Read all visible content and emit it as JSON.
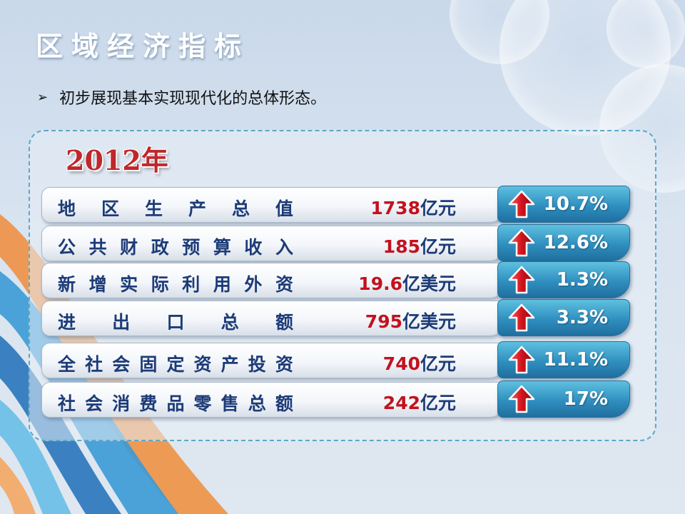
{
  "page": {
    "title": "区域经济指标",
    "bullet_text": "初步展现基本实现现代化的总体形态。",
    "year": "2012年"
  },
  "indicators": [
    {
      "label": "地区生产总值",
      "number": "1738",
      "unit": "亿元",
      "growth": "10.7%",
      "direction": "up"
    },
    {
      "label": "公共财政预算收入",
      "number": "185",
      "unit": "亿元",
      "growth": "12.6%",
      "direction": "up"
    },
    {
      "label": "新增实际利用外资",
      "number": "19.6",
      "unit": "亿美元",
      "growth": "1.3%",
      "direction": "up"
    },
    {
      "label": "进出口总额",
      "number": "795",
      "unit": "亿美元",
      "growth": "3.3%",
      "direction": "up"
    },
    {
      "label": "全社会固定资产投资",
      "number": "740",
      "unit": "亿元",
      "growth": "11.1%",
      "direction": "up"
    },
    {
      "label": "社会消费品零售总额",
      "number": "242",
      "unit": "亿元",
      "growth": "17%",
      "direction": "up"
    }
  ],
  "colors": {
    "label_text": "#1d3b78",
    "number_text": "#c3121e",
    "growth_box": "#2f8fbf",
    "arrow": "#d0141e",
    "panel_border": "#5aa9c8"
  },
  "icons": {
    "bullet": "right-triangle-arrow",
    "growth": "up-arrow-icon"
  }
}
